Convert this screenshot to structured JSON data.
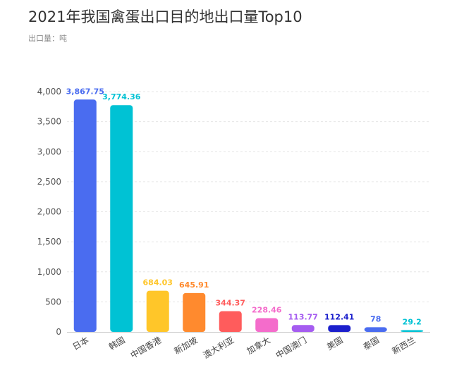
{
  "header": {
    "title": "2021年我国禽蛋出口目的地出口量Top10",
    "unit_label": "出口量：吨"
  },
  "chart_data": {
    "type": "bar",
    "title": "2021年我国禽蛋出口目的地出口量Top10",
    "ylabel": "出口量：吨",
    "xlabel": "",
    "ylim": [
      0,
      4000
    ],
    "yticks": [
      0,
      500,
      1000,
      1500,
      2000,
      2500,
      3000,
      3500,
      4000
    ],
    "ytick_labels": [
      "0",
      "500",
      "1,000",
      "1,500",
      "2,000",
      "2,500",
      "3,000",
      "3,500",
      "4,000"
    ],
    "grid": true,
    "categories": [
      "日本",
      "韩国",
      "中国香港",
      "新加坡",
      "澳大利亚",
      "加拿大",
      "中国澳门",
      "美国",
      "泰国",
      "新西兰"
    ],
    "values": [
      3867.75,
      3774.36,
      684.03,
      645.91,
      344.37,
      228.46,
      113.77,
      112.41,
      78,
      29.2
    ],
    "value_labels": [
      "3,867.75",
      "3,774.36",
      "684.03",
      "645.91",
      "344.37",
      "228.46",
      "113.77",
      "112.41",
      "78",
      "29.2"
    ],
    "colors": [
      "#4A6CF0",
      "#00C2D4",
      "#FFC629",
      "#FF8A2E",
      "#FF5C5C",
      "#F46CCB",
      "#A55CF0",
      "#1B1FCC",
      "#4A6CF0",
      "#00C2D4"
    ]
  }
}
